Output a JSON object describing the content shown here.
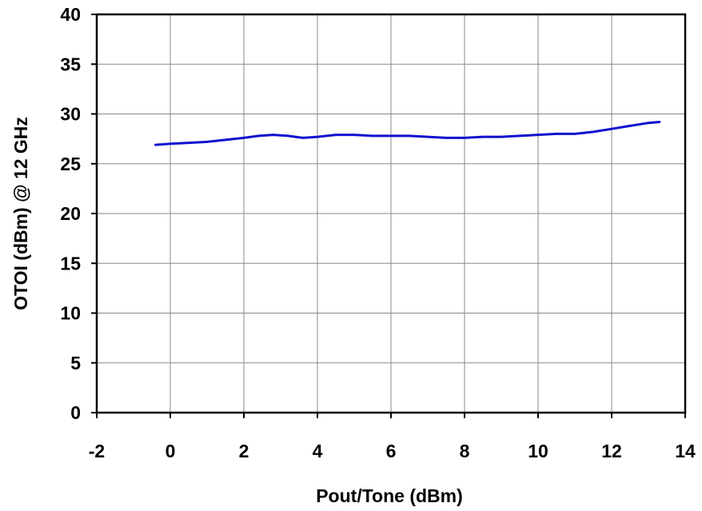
{
  "chart_data": {
    "type": "line",
    "title": "",
    "xlabel": "Pout/Tone (dBm)",
    "ylabel": "OTOI (dBm) @ 12 GHz",
    "xlim": [
      -2,
      14
    ],
    "ylim": [
      0,
      40
    ],
    "xticks": [
      -2,
      0,
      2,
      4,
      6,
      8,
      10,
      12,
      14
    ],
    "yticks": [
      0,
      5,
      10,
      15,
      20,
      25,
      30,
      35,
      40
    ],
    "grid": true,
    "legend": "none",
    "series": [
      {
        "color": "#1010d0",
        "x": [
          -0.4,
          0.0,
          0.5,
          1.0,
          1.5,
          2.0,
          2.4,
          2.8,
          3.2,
          3.6,
          4.0,
          4.5,
          5.0,
          5.5,
          6.0,
          6.5,
          7.0,
          7.5,
          8.0,
          8.5,
          9.0,
          9.5,
          10.0,
          10.5,
          11.0,
          11.5,
          12.0,
          12.5,
          13.0,
          13.3
        ],
        "y": [
          26.9,
          27.0,
          27.1,
          27.2,
          27.4,
          27.6,
          27.8,
          27.9,
          27.8,
          27.6,
          27.7,
          27.9,
          27.9,
          27.8,
          27.8,
          27.8,
          27.7,
          27.6,
          27.6,
          27.7,
          27.7,
          27.8,
          27.9,
          28.0,
          28.0,
          28.2,
          28.5,
          28.8,
          29.1,
          29.2
        ]
      }
    ]
  }
}
